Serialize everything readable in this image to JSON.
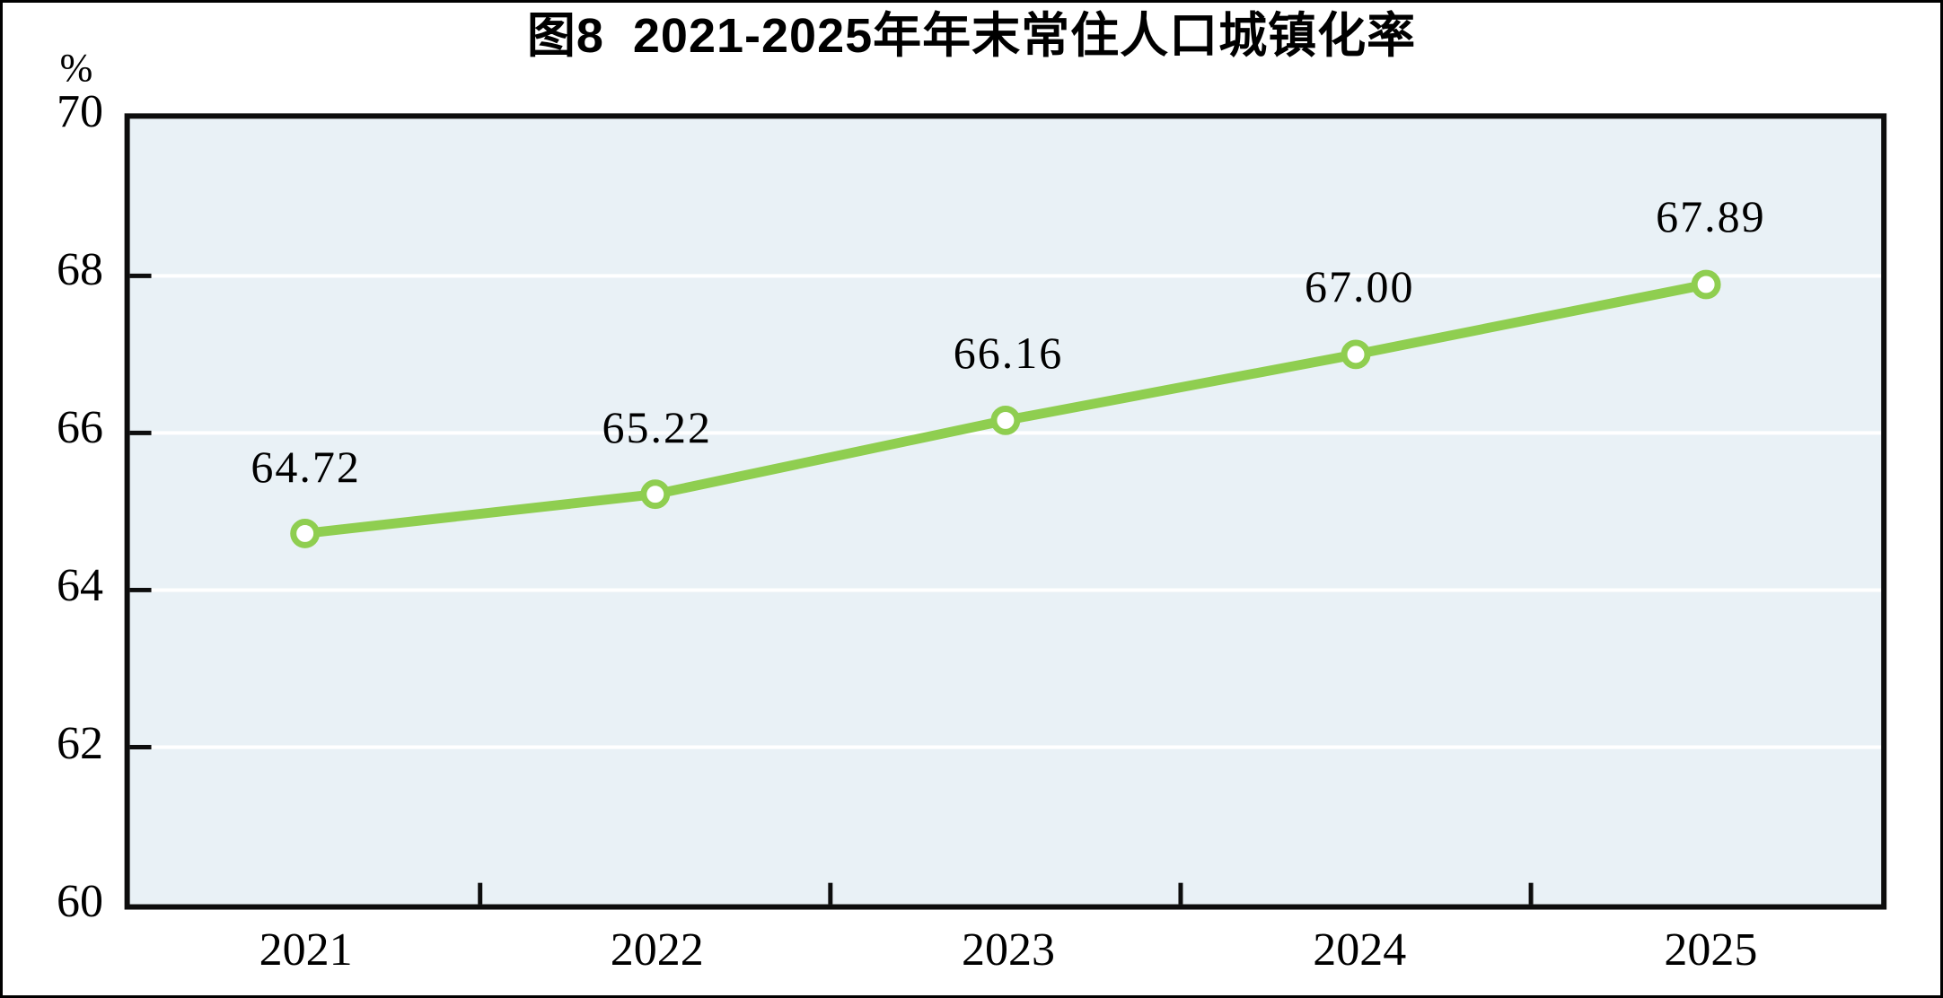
{
  "chart_data": {
    "type": "line",
    "title": "图8  2021-2025年年末常住人口城镇化率",
    "unit_label": "%",
    "categories": [
      "2021",
      "2022",
      "2023",
      "2024",
      "2025"
    ],
    "series": [
      {
        "values": [
          64.72,
          65.22,
          66.16,
          67.0,
          67.89
        ],
        "labels": [
          "64.72",
          "65.22",
          "66.16",
          "67.00",
          "67.89"
        ]
      }
    ],
    "ylim": [
      60,
      70
    ],
    "yticks": [
      70,
      68,
      66,
      64,
      62,
      60
    ],
    "ytick_step": 2,
    "xlabel": "",
    "ylabel": "%",
    "grid": "horizontal",
    "legend_position": "none",
    "colors": {
      "line": "#8fce50",
      "marker_fill": "#ffffff",
      "marker_ring": "#8fce50",
      "plot_background": "#e9f1f6",
      "gridline": "#ffffff",
      "axis_frame": "#0d0d0d",
      "text": "#000000",
      "page_background": "#ffffff",
      "outer_border": "#000000"
    }
  }
}
